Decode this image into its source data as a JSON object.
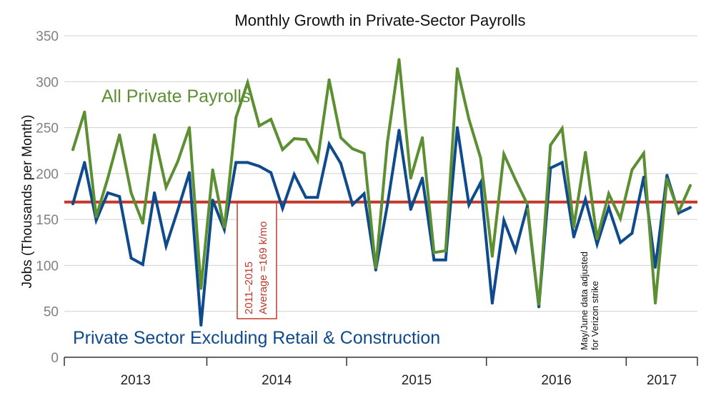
{
  "chart_data": {
    "type": "line",
    "title": "Monthly Growth in Private-Sector Payrolls",
    "ylabel": "Jobs (Thousands per Month)",
    "xlabel": "",
    "ylim": [
      0,
      350
    ],
    "yticks": [
      0,
      50,
      100,
      150,
      200,
      250,
      300,
      350
    ],
    "grid": true,
    "year_labels": [
      "2013",
      "2014",
      "2015",
      "2016",
      "2017"
    ],
    "x": [
      "2013-01",
      "2013-02",
      "2013-03",
      "2013-04",
      "2013-05",
      "2013-06",
      "2013-07",
      "2013-08",
      "2013-09",
      "2013-10",
      "2013-11",
      "2013-12",
      "2014-01",
      "2014-02",
      "2014-03",
      "2014-04",
      "2014-05",
      "2014-06",
      "2014-07",
      "2014-08",
      "2014-09",
      "2014-10",
      "2014-11",
      "2014-12",
      "2015-01",
      "2015-02",
      "2015-03",
      "2015-04",
      "2015-05",
      "2015-06",
      "2015-07",
      "2015-08",
      "2015-09",
      "2015-10",
      "2015-11",
      "2015-12",
      "2016-01",
      "2016-02",
      "2016-03",
      "2016-04",
      "2016-05",
      "2016-06",
      "2016-07",
      "2016-08",
      "2016-09",
      "2016-10",
      "2016-11",
      "2016-12",
      "2017-01",
      "2017-02",
      "2017-03",
      "2017-04",
      "2017-05",
      "2017-06"
    ],
    "series": [
      {
        "name": "All Private Payrolls",
        "color": "#5c8f32",
        "values": [
          226,
          267,
          153,
          195,
          242,
          179,
          146,
          242,
          185,
          213,
          250,
          75,
          204,
          140,
          261,
          299,
          252,
          259,
          226,
          238,
          237,
          214,
          302,
          239,
          227,
          222,
          96,
          234,
          324,
          195,
          239,
          114,
          116,
          314,
          259,
          217,
          110,
          221,
          193,
          167,
          55,
          231,
          249,
          142,
          223,
          129,
          178,
          151,
          204,
          222,
          59,
          194,
          158,
          187
        ]
      },
      {
        "name": "Private Sector Excluding Retail & Construction",
        "color": "#0f4a8c",
        "values": [
          167,
          212,
          149,
          179,
          175,
          108,
          101,
          179,
          121,
          160,
          201,
          35,
          171,
          139,
          212,
          212,
          208,
          201,
          162,
          199,
          174,
          174,
          232,
          211,
          166,
          178,
          95,
          166,
          247,
          161,
          195,
          106,
          106,
          250,
          166,
          190,
          59,
          149,
          116,
          164,
          55,
          206,
          212,
          131,
          172,
          123,
          163,
          125,
          135,
          196,
          98,
          198,
          157,
          163
        ]
      }
    ],
    "reference_line": {
      "value": 169,
      "color": "#c2382a",
      "label_line1": "2011–2015",
      "label_line2": "Average =169 k/mo"
    },
    "annotation": {
      "line1": "May/June data adjusted",
      "line2": "for Verizon strike"
    }
  }
}
